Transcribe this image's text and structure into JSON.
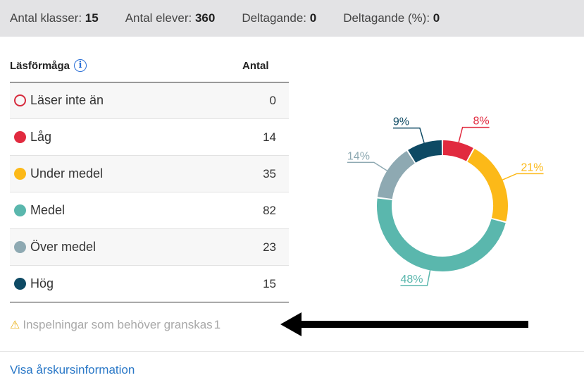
{
  "summary": {
    "classes_label": "Antal klasser:",
    "classes_value": "15",
    "students_label": "Antal elever:",
    "students_value": "360",
    "participation_label": "Deltagande:",
    "participation_value": "0",
    "participation_pct_label": "Deltagande (%):",
    "participation_pct_value": "0"
  },
  "table": {
    "col_ability": "Läsförmåga",
    "col_count": "Antal",
    "rows": [
      {
        "label": "Läser inte än",
        "count": "0",
        "color": "#d62b3d",
        "hollow": true
      },
      {
        "label": "Låg",
        "count": "14",
        "color": "#e12a3f"
      },
      {
        "label": "Under medel",
        "count": "35",
        "color": "#fcb918"
      },
      {
        "label": "Medel",
        "count": "82",
        "color": "#5ab7ad"
      },
      {
        "label": "Över medel",
        "count": "23",
        "color": "#8ea9b2"
      },
      {
        "label": "Hög",
        "count": "15",
        "color": "#0e4a64"
      }
    ]
  },
  "review": {
    "label": "Inspelningar som behöver granskas",
    "count": "1"
  },
  "link": {
    "label": "Visa årskursinformation"
  },
  "chart_data": {
    "type": "pie",
    "donut": true,
    "slices": [
      {
        "label": "Låg",
        "value": 8,
        "display": "8%",
        "color": "#e12a3f"
      },
      {
        "label": "Under medel",
        "value": 21,
        "display": "21%",
        "color": "#fcb918"
      },
      {
        "label": "Medel",
        "value": 48,
        "display": "48%",
        "color": "#5ab7ad"
      },
      {
        "label": "Över medel",
        "value": 14,
        "display": "14%",
        "color": "#8ea9b2"
      },
      {
        "label": "Hög",
        "value": 9,
        "display": "9%",
        "color": "#0e4a64"
      }
    ]
  }
}
